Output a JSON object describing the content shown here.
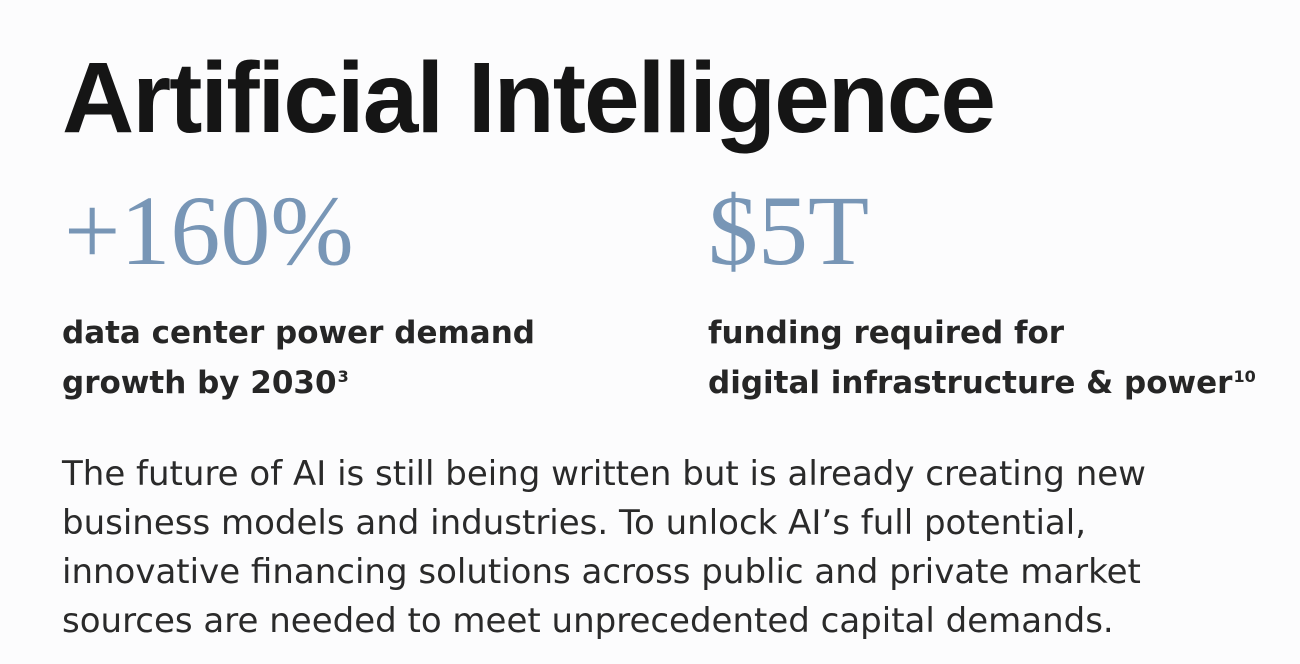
{
  "title": "Artificial Intelligence",
  "stats": [
    {
      "value": "+160%",
      "desc_line1": "data center power demand",
      "desc_line2": "growth by 2030",
      "footnote": "3"
    },
    {
      "value": "$5T",
      "desc_line1": "funding required for",
      "desc_line2": "digital infrastructure & power",
      "footnote": "10"
    }
  ],
  "body_lines": [
    "The future of AI is still being written but is already creating new",
    "business models and industries. To unlock AI’s full potential,",
    "innovative financing solutions across public and private market",
    "sources are needed to meet unprecedented capital demands."
  ],
  "colors": {
    "stat_accent": "#7896b6",
    "title": "#151515",
    "text": "#2a2a2a"
  }
}
